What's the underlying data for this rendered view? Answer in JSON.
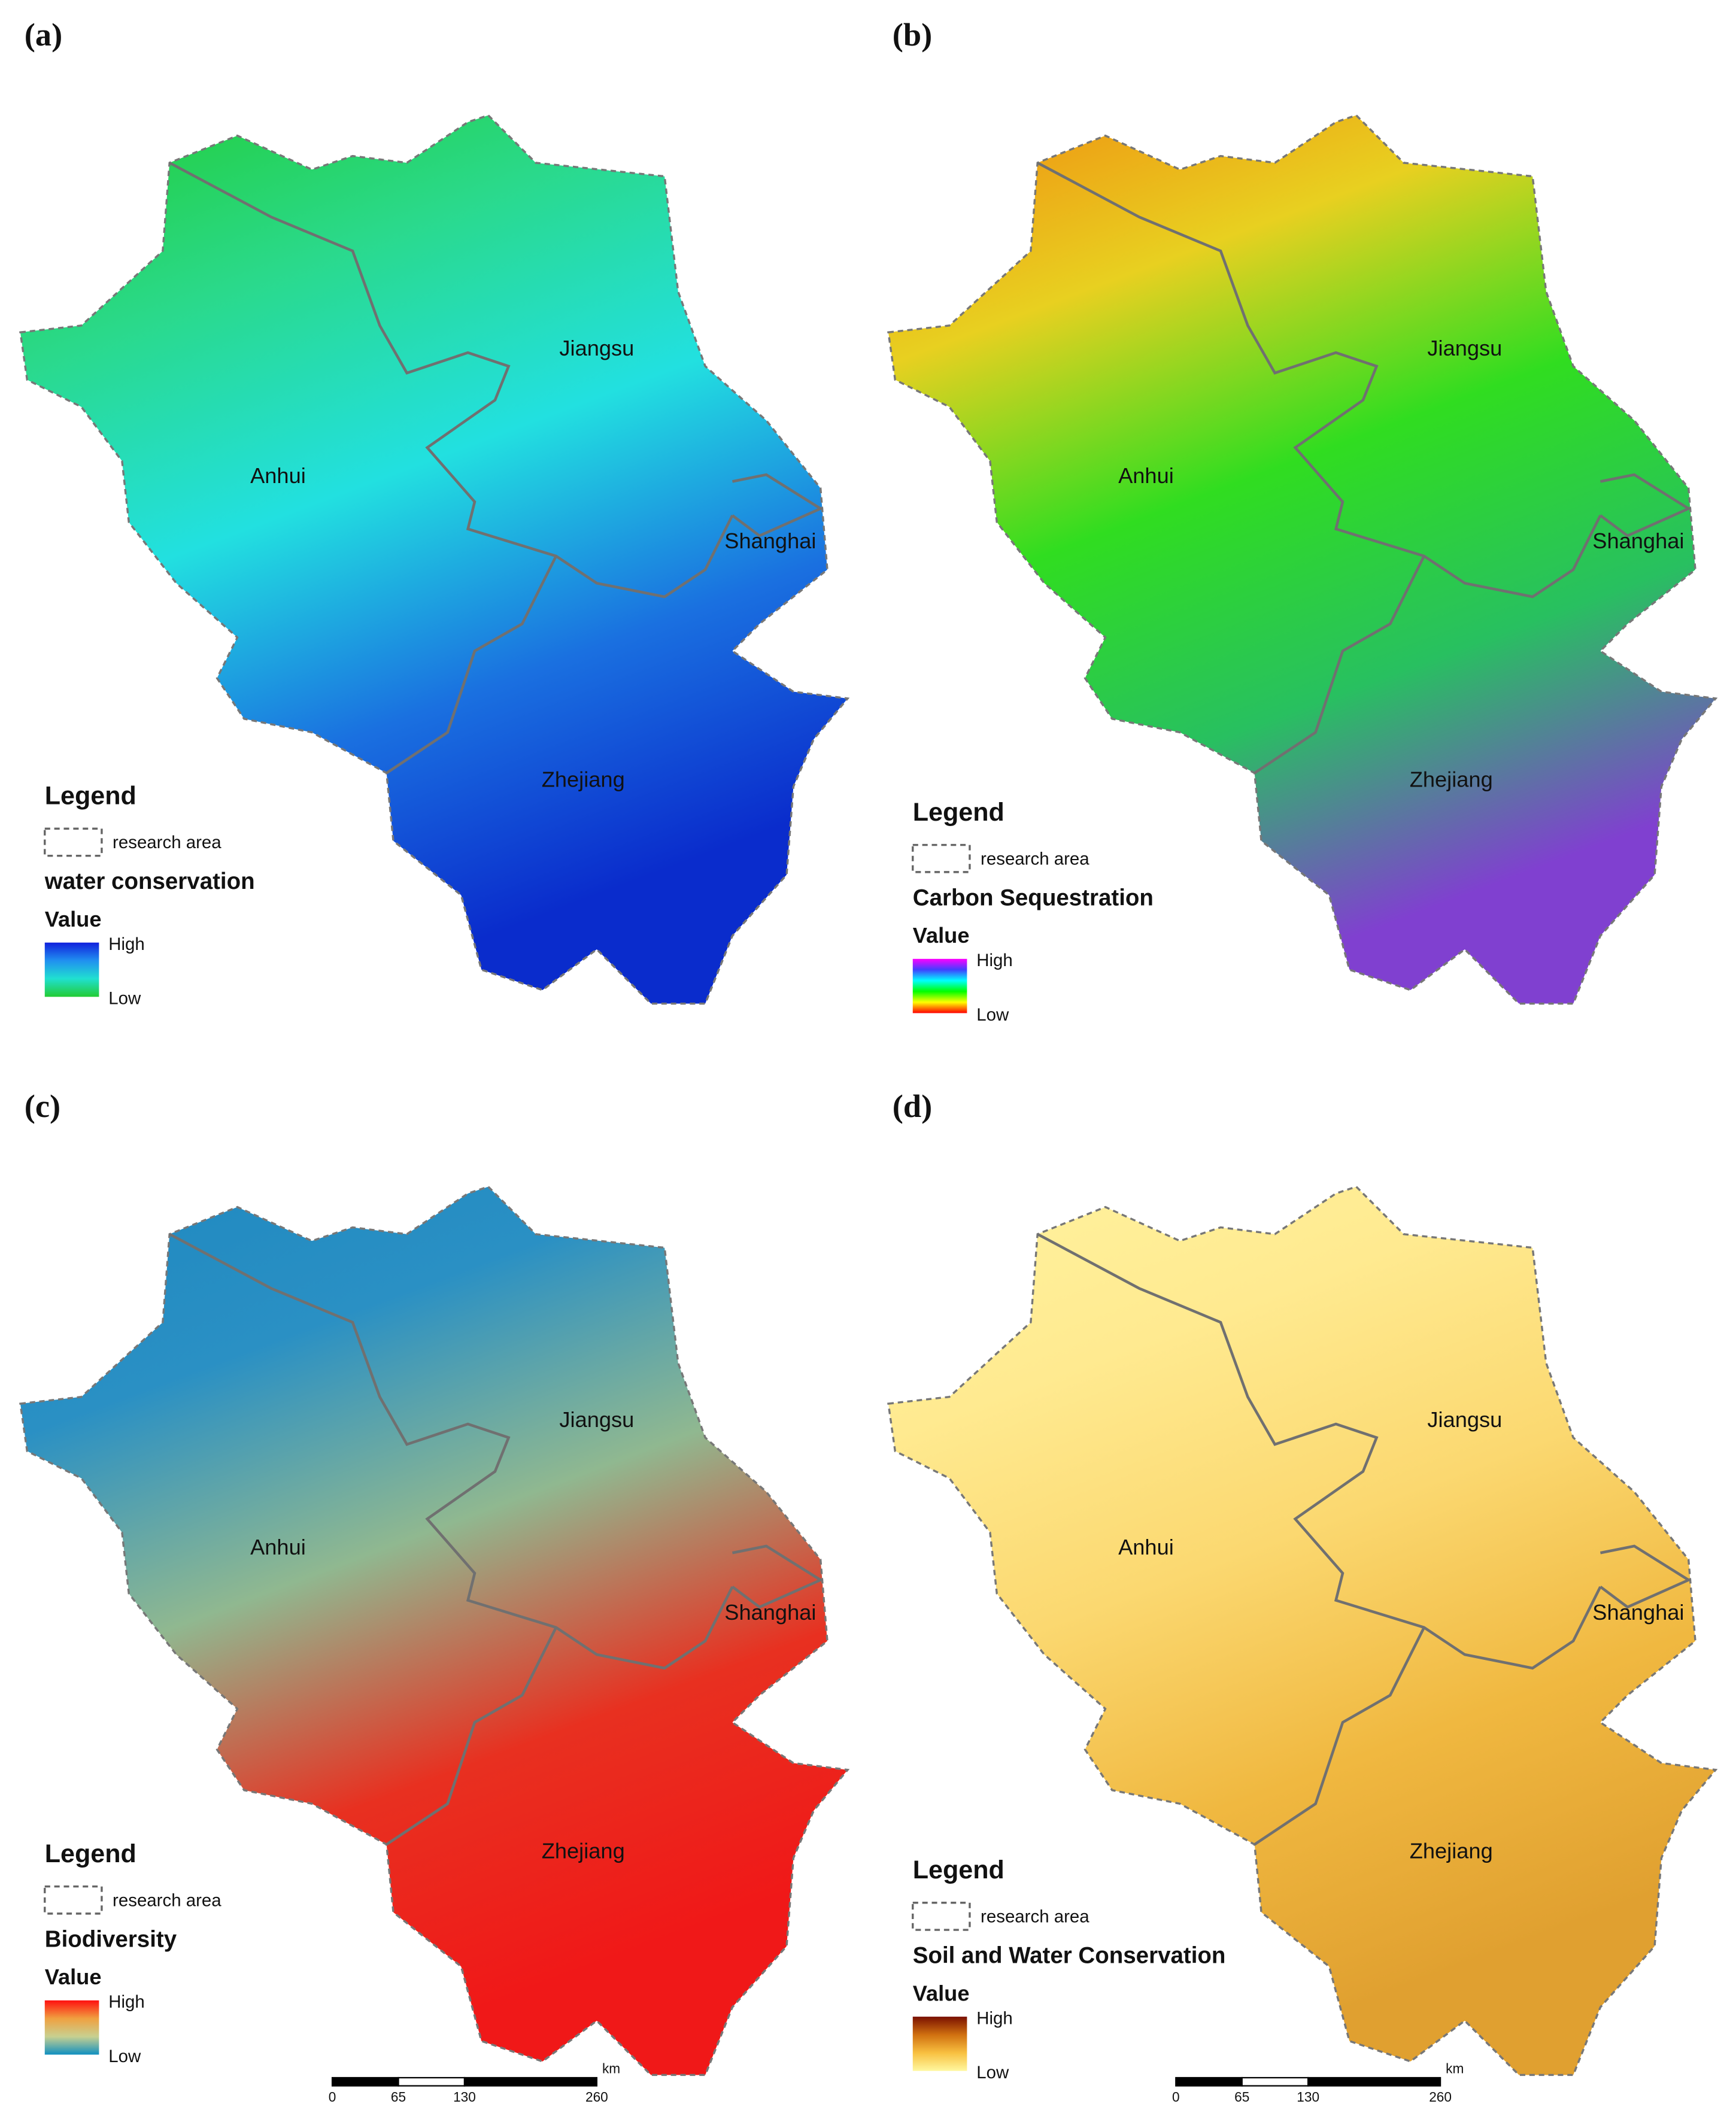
{
  "panels": [
    {
      "label": "(a)",
      "regions": [
        "Anhui",
        "Jiangsu",
        "Shanghai",
        "Zhejiang"
      ],
      "legend": {
        "heading": "Legend",
        "boundary": "research area",
        "title": "water conservation",
        "value": "Value",
        "high": "High",
        "low": "Low"
      },
      "colors": [
        "#22cc33",
        "#2ad98a",
        "#22e0e0",
        "#1a70e0",
        "#0a2ccc"
      ],
      "ramp": [
        "#1020dd",
        "#2090f0",
        "#20e0d0",
        "#22cc33"
      ]
    },
    {
      "label": "(b)",
      "regions": [
        "Anhui",
        "Jiangsu",
        "Shanghai",
        "Zhejiang"
      ],
      "legend": {
        "heading": "Legend",
        "boundary": "research area",
        "title": "Carbon Sequestration",
        "value": "Value",
        "high": "High",
        "low": "Low"
      },
      "colors": [
        "#f08a10",
        "#e8d020",
        "#30dd20",
        "#28c060",
        "#8040d0"
      ],
      "ramp": [
        "#ff00ff",
        "#4040ff",
        "#00ffff",
        "#00ff00",
        "#ffff00",
        "#ff0000"
      ]
    },
    {
      "label": "(c)",
      "regions": [
        "Anhui",
        "Jiangsu",
        "Shanghai",
        "Zhejiang"
      ],
      "legend": {
        "heading": "Legend",
        "boundary": "research area",
        "title": "Biodiversity",
        "value": "Value",
        "high": "High",
        "low": "Low"
      },
      "colors": [
        "#1e88c0",
        "#2a90c4",
        "#90b890",
        "#e83020",
        "#f01818"
      ],
      "ramp": [
        "#ff1010",
        "#f0a040",
        "#c8d090",
        "#1090c0"
      ]
    },
    {
      "label": "(d)",
      "regions": [
        "Anhui",
        "Jiangsu",
        "Shanghai",
        "Zhejiang"
      ],
      "legend": {
        "heading": "Legend",
        "boundary": "research area",
        "title": "Soil and Water Conservation",
        "value": "Value",
        "high": "High",
        "low": "Low"
      },
      "colors": [
        "#fff3a0",
        "#ffea90",
        "#fbd870",
        "#f0b840",
        "#e0a030"
      ],
      "ramp": [
        "#7a1000",
        "#d07010",
        "#f8c040",
        "#fff8a0"
      ]
    }
  ],
  "scale_bars": [
    {
      "unit": "km",
      "ticks": [
        "0",
        "65",
        "130",
        "260"
      ]
    },
    {
      "unit": "km",
      "ticks": [
        "0",
        "65",
        "130",
        "260"
      ]
    }
  ]
}
